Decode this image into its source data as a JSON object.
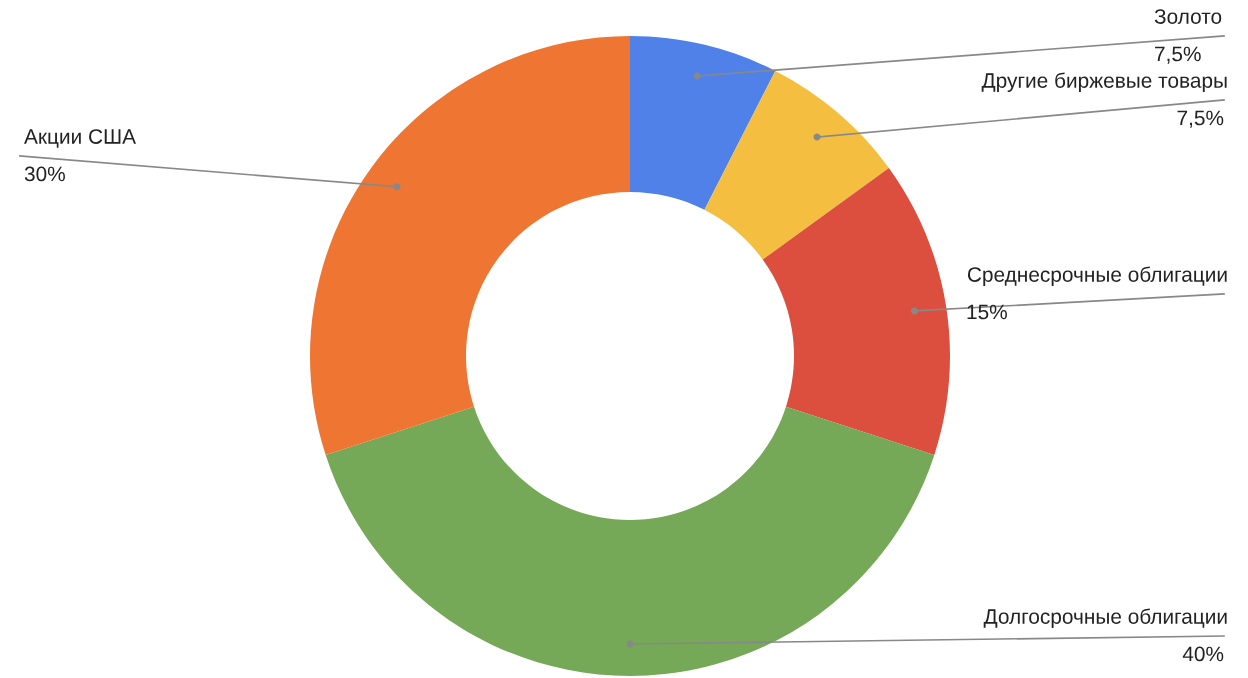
{
  "chart_data": {
    "type": "donut",
    "categories": [
      "Золото",
      "Другие биржевые товары",
      "Среднесрочные облигации",
      "Долгосрочные облигации",
      "Акции США"
    ],
    "values": [
      7.5,
      7.5,
      15,
      40,
      30
    ],
    "value_labels": [
      "7,5%",
      "7,5%",
      "15%",
      "40%",
      "30%"
    ],
    "colors": [
      "#4f81e8",
      "#f4bf41",
      "#dc4f3f",
      "#75a857",
      "#ee7632"
    ],
    "legend": false
  }
}
